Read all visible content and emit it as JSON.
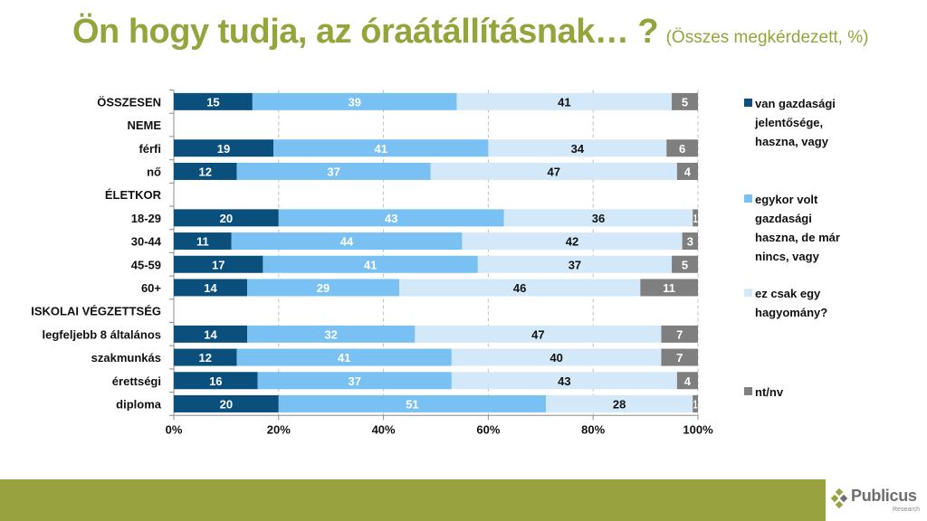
{
  "title": {
    "main": "Ön hogy tudja, az óraátállításnak… ?",
    "sub": "(Összes megkérdezett, %)"
  },
  "colors": {
    "title": "#95a43b",
    "series": [
      "#0b4f7d",
      "#79c0f3",
      "#d3e9fa",
      "#7f7f7f"
    ],
    "label_text": [
      "#ffffff",
      "#ffffff",
      "#111111",
      "#ffffff"
    ],
    "footer": "#98a33f"
  },
  "chart_data": {
    "type": "bar",
    "orientation": "horizontal",
    "stacked": "percent",
    "categories": [
      "ÖSSZESEN",
      "NEME",
      "férfi",
      "nő",
      "ÉLETKOR",
      "18-29",
      "30-44",
      "45-59",
      "60+",
      "ISKOLAI VÉGZETTSÉG",
      "legfeljebb 8 általános",
      "szakmunkás",
      "érettségi",
      "diploma"
    ],
    "series": [
      {
        "name": "van gazdasági jelentősége, haszna, vagy",
        "values": [
          15,
          null,
          19,
          12,
          null,
          20,
          11,
          17,
          14,
          null,
          14,
          12,
          16,
          20
        ]
      },
      {
        "name": "egykor volt gazdasági haszna, de már nincs, vagy",
        "values": [
          39,
          null,
          41,
          37,
          null,
          43,
          44,
          41,
          29,
          null,
          32,
          41,
          37,
          51
        ]
      },
      {
        "name": "ez csak egy hagyomány?",
        "values": [
          41,
          null,
          34,
          47,
          null,
          36,
          42,
          37,
          46,
          null,
          47,
          40,
          43,
          28
        ]
      },
      {
        "name": "nt/nv",
        "values": [
          5,
          null,
          6,
          4,
          null,
          1,
          3,
          5,
          11,
          null,
          7,
          7,
          4,
          1
        ]
      }
    ],
    "xlim": [
      0,
      100
    ],
    "xticks": [
      "0%",
      "20%",
      "40%",
      "60%",
      "80%",
      "100%"
    ],
    "grid": "vertical dashed",
    "legend_position": "right"
  },
  "legend": [
    {
      "lines": [
        "van gazdasági",
        "jelentősége,",
        "haszna, vagy"
      ]
    },
    {
      "lines": [
        "egykor volt",
        "gazdasági",
        "haszna, de már",
        "nincs, vagy"
      ]
    },
    {
      "lines": [
        "ez csak egy",
        "hagyomány?"
      ]
    },
    {
      "lines": [
        "nt/nv"
      ]
    }
  ],
  "logo": {
    "name": "Publicus",
    "sub": "Research"
  }
}
